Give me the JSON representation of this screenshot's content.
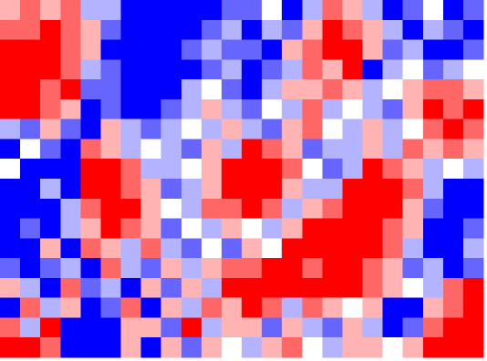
{
  "chart_data": {
    "type": "heatmap",
    "colormap": [
      "#0000ff",
      "#ffffff",
      "#ff0000"
    ],
    "vmin": -1,
    "vmax": 1,
    "values": [
      [
        0.3,
        0.6,
        0.3,
        0.6,
        -0.3,
        -0.3,
        -1,
        -1,
        -1,
        -1,
        -1,
        -0.6,
        -0.6,
        0,
        -1,
        -0.3,
        0.6,
        0.3,
        -0.3,
        -1,
        -0.6,
        0,
        -1,
        -0.6
      ],
      [
        0.6,
        0.6,
        1,
        0.6,
        0.3,
        -0.6,
        -1,
        -1,
        -1,
        -1,
        -0.6,
        -0.3,
        -1,
        -0.3,
        -0.6,
        0.3,
        1,
        0.6,
        0.3,
        -0.3,
        -1,
        -0.3,
        -0.6,
        -1
      ],
      [
        1,
        1,
        1,
        0.6,
        0.3,
        -1,
        -1,
        -1,
        -1,
        -0.6,
        -0.3,
        -0.6,
        -0.6,
        -1,
        0.3,
        0.6,
        1,
        1,
        0.3,
        -0.6,
        -0.3,
        -1,
        -1,
        -0.6
      ],
      [
        1,
        1,
        1,
        0.6,
        -0.3,
        -0.6,
        -1,
        -1,
        -1,
        -1,
        -0.6,
        -0.3,
        -1,
        -0.6,
        -0.3,
        0.6,
        0.3,
        1,
        -1,
        -0.3,
        0,
        -0.6,
        -0.3,
        0
      ],
      [
        1,
        1,
        0.6,
        1,
        -0.6,
        -0.6,
        -1,
        -1,
        -1,
        -0.3,
        0,
        -0.6,
        -1,
        -0.3,
        0.3,
        0.3,
        0.6,
        0.3,
        -0.3,
        0,
        0.3,
        0.6,
        0.6,
        0.3
      ],
      [
        1,
        1,
        0.6,
        0.3,
        -1,
        -0.6,
        -1,
        -1,
        -0.6,
        -0.3,
        0.3,
        -0.3,
        -0.6,
        0,
        -0.3,
        0.6,
        -0.3,
        0,
        -0.3,
        -0.6,
        0.3,
        1,
        0.6,
        1
      ],
      [
        -0.3,
        -0.6,
        0.3,
        -0.6,
        -1,
        0.3,
        -0.3,
        -0.6,
        -0.3,
        0,
        -0.3,
        0.3,
        -0.3,
        -0.6,
        0.3,
        0.6,
        0,
        -0.3,
        0.3,
        -0.3,
        0,
        0.6,
        1,
        0.6
      ],
      [
        -1,
        0,
        -0.6,
        -1,
        0.6,
        0.3,
        -0.3,
        0,
        -0.3,
        -0.6,
        0.3,
        -0.3,
        1,
        0.6,
        0.3,
        -0.6,
        -0.3,
        -0.3,
        0.3,
        -0.3,
        0.6,
        0.3,
        0.6,
        0.3
      ],
      [
        0,
        -1,
        -1,
        -1,
        1,
        1,
        0.6,
        -0.3,
        -0.3,
        0,
        0.3,
        1,
        1,
        1,
        0.6,
        0,
        -0.6,
        -0.3,
        1,
        0.6,
        0.3,
        -0.3,
        0,
        -0.3
      ],
      [
        -1,
        -1,
        -0.3,
        -1,
        1,
        1,
        0.6,
        0.3,
        -0.6,
        -0.3,
        0.3,
        1,
        1,
        1,
        0.3,
        -0.3,
        -0.3,
        1,
        1,
        1,
        0.6,
        -0.3,
        -1,
        -1
      ],
      [
        -1,
        -1,
        -1,
        -0.3,
        0.6,
        1,
        1,
        0.3,
        0,
        -0.3,
        0.6,
        0.6,
        1,
        0.6,
        -0.3,
        0.3,
        0.6,
        1,
        1,
        1,
        0.3,
        -0.6,
        -1,
        -1
      ],
      [
        -1,
        -0.6,
        -1,
        -0.3,
        0.3,
        1,
        0.6,
        0.3,
        -0.6,
        0,
        -0.3,
        0.3,
        0,
        -0.3,
        0.3,
        1,
        1,
        1,
        1,
        0.6,
        0.3,
        -1,
        -1,
        -0.6
      ],
      [
        -1,
        -1,
        0.3,
        -1,
        0.6,
        0.3,
        -0.3,
        0.6,
        -0.3,
        -0.6,
        0,
        -0.6,
        0.3,
        0,
        1,
        1,
        1,
        1,
        1,
        0.6,
        -0.3,
        -1,
        -1,
        -0.3
      ],
      [
        -0.6,
        -1,
        -0.6,
        -0.3,
        -1,
        0.6,
        -0.3,
        -0.6,
        0.3,
        -0.3,
        0.3,
        0.6,
        0.6,
        1,
        1,
        0.6,
        1,
        1,
        0.6,
        0.3,
        -0.6,
        -0.3,
        -1,
        -0.6
      ],
      [
        0.3,
        -0.3,
        -1,
        0.6,
        -0.6,
        -0.3,
        -1,
        0.3,
        -0.6,
        0.3,
        -0.3,
        1,
        1,
        1,
        1,
        1,
        1,
        1,
        0.6,
        0.3,
        0,
        -0.3,
        0.6,
        1
      ],
      [
        -1,
        0.6,
        -0.3,
        0.3,
        -1,
        -0.6,
        0.6,
        -1,
        0.3,
        -0.3,
        0.6,
        0.3,
        1,
        0.6,
        -0.3,
        0.6,
        0.3,
        0,
        0.3,
        -1,
        -1,
        0.3,
        0.6,
        1
      ],
      [
        0.6,
        -0.3,
        1,
        -1,
        -1,
        -1,
        0.3,
        0.3,
        -0.6,
        1,
        -0.3,
        0.3,
        0.3,
        -0.6,
        0.3,
        -0.3,
        -0.6,
        0.3,
        -0.3,
        -1,
        -0.6,
        0.6,
        1,
        1
      ],
      [
        1,
        1,
        0.6,
        -1,
        -1,
        -1,
        0.3,
        -1,
        0.3,
        -0.6,
        0.3,
        0,
        -0.3,
        0.3,
        0.6,
        0,
        -0.3,
        0.3,
        0.3,
        0,
        0.3,
        1,
        1,
        1
      ]
    ]
  }
}
